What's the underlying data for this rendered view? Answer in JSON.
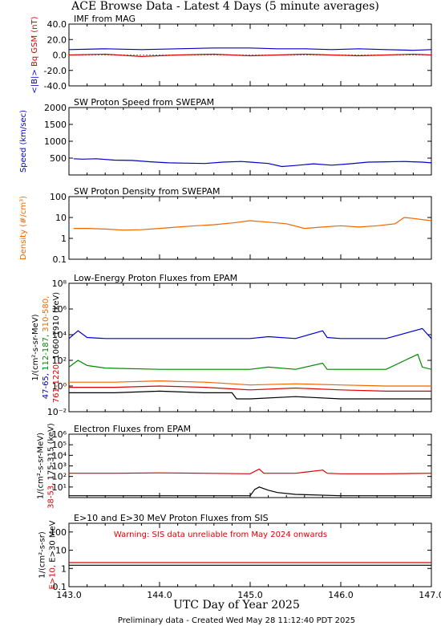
{
  "page": {
    "title": "ACE Browse Data - Latest 4 Days (5 minute averages)",
    "xlabel": "UTC Day of Year 2025",
    "footer": "Preliminary data - Created Wed May 28 11:12:40 PDT 2025",
    "x_ticks": [
      "143.0",
      "144.0",
      "145.0",
      "146.0",
      "147.0"
    ]
  },
  "colors": {
    "blue": "#0000cc",
    "red": "#dd0000",
    "green": "#008800",
    "orange": "#ee6600",
    "black": "#000000"
  },
  "chart_data": [
    {
      "type": "line",
      "title": "IMF from MAG",
      "ylabel_parts": [
        {
          "text": "<|B|>",
          "color": "#0000cc"
        },
        {
          "text": " ",
          "color": "#000000"
        },
        {
          "text": "B",
          "color": "#dd0000"
        },
        {
          "text": "q",
          "color": "#dd0000"
        },
        {
          "text": " GSM (nT)",
          "color": "#dd0000"
        }
      ],
      "yscale": "linear",
      "ylim": [
        -40,
        40
      ],
      "xlim": [
        143.0,
        147.0
      ],
      "y_ticks": [
        "40.0",
        "20.0",
        "0.0",
        "-20.0",
        "-40.0"
      ],
      "series": [
        {
          "color": "#0000cc",
          "x": [
            143.0,
            143.4,
            143.8,
            144.2,
            144.6,
            145.0,
            145.3,
            145.6,
            145.9,
            146.2,
            146.5,
            146.8,
            147.0
          ],
          "y": [
            7,
            8,
            7,
            8,
            9,
            9,
            8,
            8,
            7,
            8,
            7,
            6,
            7
          ]
        },
        {
          "color": "#dd0000",
          "x": [
            143.0,
            143.4,
            143.8,
            144.2,
            144.6,
            145.0,
            145.3,
            145.6,
            145.9,
            146.2,
            146.5,
            146.8,
            147.0
          ],
          "y": [
            0,
            1,
            -2,
            0,
            1,
            -1,
            0,
            1,
            0,
            -1,
            0,
            1,
            0
          ]
        }
      ]
    },
    {
      "type": "line",
      "title": "SW Proton Speed from SWEPAM",
      "ylabel_parts": [
        {
          "text": "Speed (km/sec)",
          "color": "#0000cc"
        }
      ],
      "yscale": "linear",
      "ylim": [
        0,
        2000
      ],
      "xlim": [
        143.0,
        147.0
      ],
      "y_ticks": [
        "2000",
        "1500",
        "1000",
        "500"
      ],
      "series": [
        {
          "color": "#0000cc",
          "x": [
            143.05,
            143.15,
            143.3,
            143.5,
            143.7,
            143.9,
            144.1,
            144.3,
            144.5,
            144.7,
            144.9,
            145.0,
            145.2,
            145.35,
            145.5,
            145.7,
            145.9,
            146.1,
            146.3,
            146.5,
            146.7,
            146.9,
            147.0
          ],
          "y": [
            480,
            470,
            480,
            440,
            430,
            390,
            360,
            350,
            340,
            380,
            400,
            380,
            340,
            250,
            280,
            330,
            290,
            330,
            380,
            390,
            400,
            380,
            360
          ]
        }
      ]
    },
    {
      "type": "line",
      "title": "SW Proton Density from SWEPAM",
      "ylabel_parts": [
        {
          "text": "Density (#/cm³)",
          "color": "#ee6600"
        }
      ],
      "yscale": "log",
      "ylim": [
        0.1,
        100
      ],
      "xlim": [
        143.0,
        147.0
      ],
      "y_ticks": [
        "100",
        "10",
        "1",
        "0.1"
      ],
      "series": [
        {
          "color": "#ee6600",
          "x": [
            143.05,
            143.2,
            143.4,
            143.6,
            143.8,
            144.0,
            144.2,
            144.4,
            144.6,
            144.8,
            145.0,
            145.2,
            145.4,
            145.6,
            145.8,
            146.0,
            146.2,
            146.4,
            146.6,
            146.7,
            146.8,
            147.0
          ],
          "y": [
            3.0,
            3.0,
            2.8,
            2.5,
            2.6,
            3.0,
            3.5,
            4.0,
            4.5,
            5.5,
            7.0,
            6.0,
            5.0,
            3.0,
            3.5,
            4.0,
            3.5,
            4.0,
            5.0,
            10.0,
            9.0,
            7.0
          ]
        }
      ]
    },
    {
      "type": "line",
      "title": "Low-Energy Proton Fluxes from EPAM",
      "ylabel_lines": [
        [
          {
            "text": "1/(cm²-s-sr-MeV)",
            "color": "#000000"
          }
        ],
        [
          {
            "text": "47-65, ",
            "color": "#0000cc"
          },
          {
            "text": "112-187, ",
            "color": "#008800"
          },
          {
            "text": "310-580,",
            "color": "#ee6600"
          }
        ],
        [
          {
            "text": "761-1220, ",
            "color": "#dd0000"
          },
          {
            "text": "1060-1910 (keV)",
            "color": "#000000"
          }
        ]
      ],
      "yscale": "log",
      "ylim": [
        0.01,
        100000000
      ],
      "xlim": [
        143.0,
        147.0
      ],
      "y_ticks": [
        "10⁸",
        "10⁶",
        "10⁴",
        "10²",
        "10⁰",
        "10⁻²"
      ],
      "series": [
        {
          "color": "#0000cc",
          "x": [
            143.0,
            143.1,
            143.2,
            143.4,
            144.0,
            144.5,
            145.0,
            145.2,
            145.5,
            145.8,
            145.85,
            146.0,
            146.5,
            146.9,
            147.0
          ],
          "y": [
            5000,
            20000,
            6000,
            5000,
            5000,
            5000,
            5000,
            7000,
            5000,
            20000,
            6000,
            5000,
            5000,
            30000,
            5000
          ]
        },
        {
          "color": "#008800",
          "x": [
            143.0,
            143.1,
            143.2,
            143.4,
            144.0,
            144.5,
            145.0,
            145.2,
            145.5,
            145.8,
            145.85,
            146.0,
            146.5,
            146.85,
            146.9,
            147.0
          ],
          "y": [
            30,
            100,
            40,
            25,
            20,
            20,
            20,
            30,
            20,
            60,
            20,
            20,
            20,
            300,
            30,
            20
          ]
        },
        {
          "color": "#ee6600",
          "x": [
            143.0,
            143.5,
            144.0,
            144.5,
            144.8,
            145.0,
            145.5,
            146.0,
            146.5,
            147.0
          ],
          "y": [
            2,
            2,
            2.5,
            2,
            1.5,
            1.2,
            1.5,
            1.2,
            1,
            1
          ]
        },
        {
          "color": "#dd0000",
          "x": [
            143.0,
            143.5,
            144.0,
            144.5,
            144.8,
            145.0,
            145.5,
            146.0,
            146.5,
            147.0
          ],
          "y": [
            0.8,
            0.8,
            1.0,
            0.8,
            0.6,
            0.5,
            0.7,
            0.5,
            0.4,
            0.4
          ]
        },
        {
          "color": "#000000",
          "x": [
            143.0,
            143.5,
            144.0,
            144.5,
            144.8,
            144.85,
            145.0,
            145.5,
            146.0,
            146.5,
            147.0
          ],
          "y": [
            0.3,
            0.3,
            0.4,
            0.3,
            0.3,
            0.1,
            0.1,
            0.15,
            0.1,
            0.1,
            0.1
          ]
        }
      ]
    },
    {
      "type": "line",
      "title": "Electron Fluxes from EPAM",
      "ylabel_lines": [
        [
          {
            "text": "1/(cm²-s-sr-MeV)",
            "color": "#000000"
          }
        ],
        [
          {
            "text": "38-53, ",
            "color": "#dd0000"
          },
          {
            "text": "175-315 (keV)",
            "color": "#000000"
          }
        ]
      ],
      "yscale": "log",
      "ylim": [
        10,
        10000000
      ],
      "xlim": [
        143.0,
        147.0
      ],
      "y_ticks": [
        "10⁶",
        "10⁵",
        "10⁴",
        "10³",
        "10²",
        "10¹"
      ],
      "series": [
        {
          "color": "#dd0000",
          "x": [
            143.0,
            143.5,
            144.0,
            144.5,
            145.0,
            145.1,
            145.15,
            145.5,
            145.8,
            145.85,
            146.0,
            146.5,
            147.0
          ],
          "y": [
            2000,
            2000,
            2200,
            2000,
            1800,
            5000,
            2000,
            2000,
            4000,
            2000,
            1800,
            1800,
            2000
          ]
        },
        {
          "color": "#000000",
          "x": [
            143.0,
            144.0,
            145.0,
            145.05,
            145.1,
            145.2,
            145.3,
            145.5,
            146.0,
            147.0
          ],
          "y": [
            15,
            15,
            15,
            60,
            100,
            50,
            30,
            20,
            15,
            15
          ]
        }
      ]
    },
    {
      "type": "line",
      "title": "E>10 and E>30 MeV Proton Fluxes from SIS",
      "annotation": "Warning: SIS data unreliable from May 2024 onwards",
      "ylabel_lines": [
        [
          {
            "text": "1/(cm²-s-sr)",
            "color": "#000000"
          }
        ],
        [
          {
            "text": "E>10, ",
            "color": "#dd0000"
          },
          {
            "text": "E>30 MeV",
            "color": "#000000"
          }
        ]
      ],
      "yscale": "log",
      "ylim": [
        0.1,
        300
      ],
      "xlim": [
        143.0,
        147.0
      ],
      "y_ticks": [
        "100",
        "10",
        "1",
        "0.1"
      ],
      "series": [
        {
          "color": "#dd0000",
          "x": [
            143.0,
            144.0,
            145.0,
            146.0,
            147.0
          ],
          "y": [
            2.1,
            2.1,
            2.1,
            2.1,
            2.1
          ]
        },
        {
          "color": "#000000",
          "x": [
            143.0,
            144.0,
            145.0,
            146.0,
            147.0
          ],
          "y": [
            1.5,
            1.5,
            1.5,
            1.5,
            1.5
          ]
        }
      ]
    }
  ]
}
